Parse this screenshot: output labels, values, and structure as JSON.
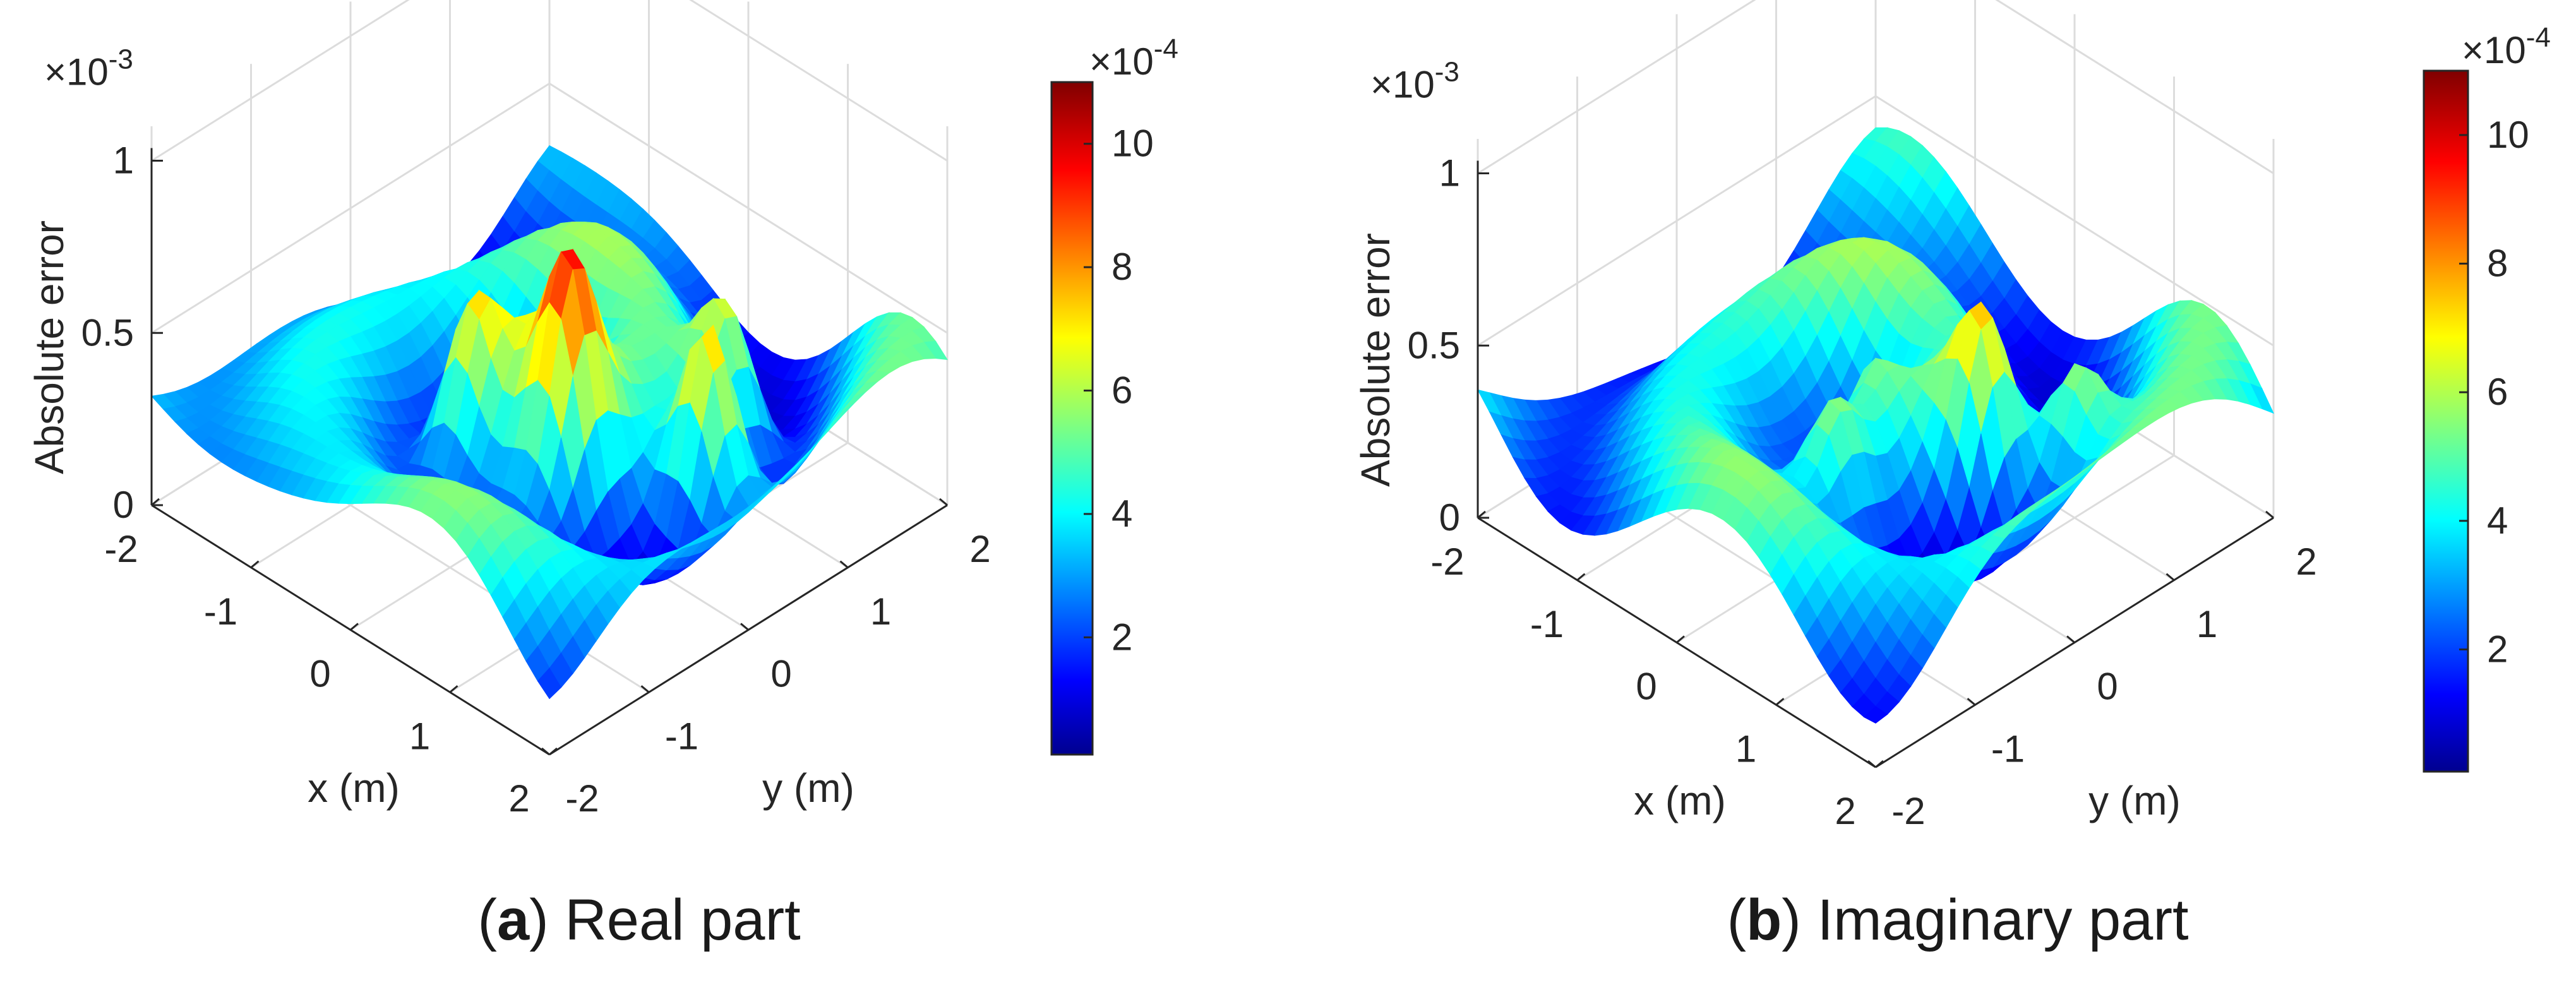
{
  "chart_data": [
    {
      "type": "surface3d",
      "panel_label": "a",
      "caption": "Real part",
      "xlabel": "x (m)",
      "ylabel": "y (m)",
      "zlabel": "Absolute error",
      "z_multiplier": "×10",
      "z_exponent": "-3",
      "x_ticks": [
        "-2",
        "-1",
        "0",
        "1",
        "2"
      ],
      "y_ticks": [
        "-2",
        "-1",
        "0",
        "1",
        "2"
      ],
      "z_ticks": [
        "0",
        "0.5",
        "1"
      ],
      "xlim": [
        -2,
        2
      ],
      "ylim": [
        -2,
        2
      ],
      "zlim": [
        0,
        0.0011
      ],
      "colorbar": {
        "colormap": "jet",
        "multiplier": "×10",
        "exponent": "-4",
        "ticks": [
          "2",
          "4",
          "6",
          "8",
          "10"
        ],
        "range": [
          0.1,
          11
        ]
      },
      "peaks": [
        {
          "x": 1.3,
          "y": 0.3,
          "z_e3": 0.98
        },
        {
          "x": -0.25,
          "y": -0.55,
          "z_e3": 0.82
        },
        {
          "x": 0.55,
          "y": -0.35,
          "z_e3": 0.82
        },
        {
          "x": 0.9,
          "y": 0.9,
          "z_e3": 0.78
        }
      ]
    },
    {
      "type": "surface3d",
      "panel_label": "b",
      "caption": "Imaginary part",
      "xlabel": "x (m)",
      "ylabel": "y (m)",
      "zlabel": "Absolute error",
      "z_multiplier": "×10",
      "z_exponent": "-3",
      "x_ticks": [
        "-2",
        "-1",
        "0",
        "1",
        "2"
      ],
      "y_ticks": [
        "-2",
        "-1",
        "0",
        "1",
        "2"
      ],
      "z_ticks": [
        "0",
        "0.5",
        "1"
      ],
      "xlim": [
        -2,
        2
      ],
      "ylim": [
        -2,
        2
      ],
      "zlim": [
        0,
        0.0011
      ],
      "colorbar": {
        "colormap": "jet",
        "multiplier": "×10",
        "exponent": "-4",
        "ticks": [
          "2",
          "4",
          "6",
          "8",
          "10"
        ],
        "range": [
          0.1,
          11
        ]
      },
      "peaks": [
        {
          "x": 0.8,
          "y": 0.3,
          "z_e3": 0.82
        },
        {
          "x": 0.3,
          "y": -0.7,
          "z_e3": 0.68
        },
        {
          "x": 1.2,
          "y": 0.8,
          "z_e3": 0.72
        }
      ]
    }
  ]
}
